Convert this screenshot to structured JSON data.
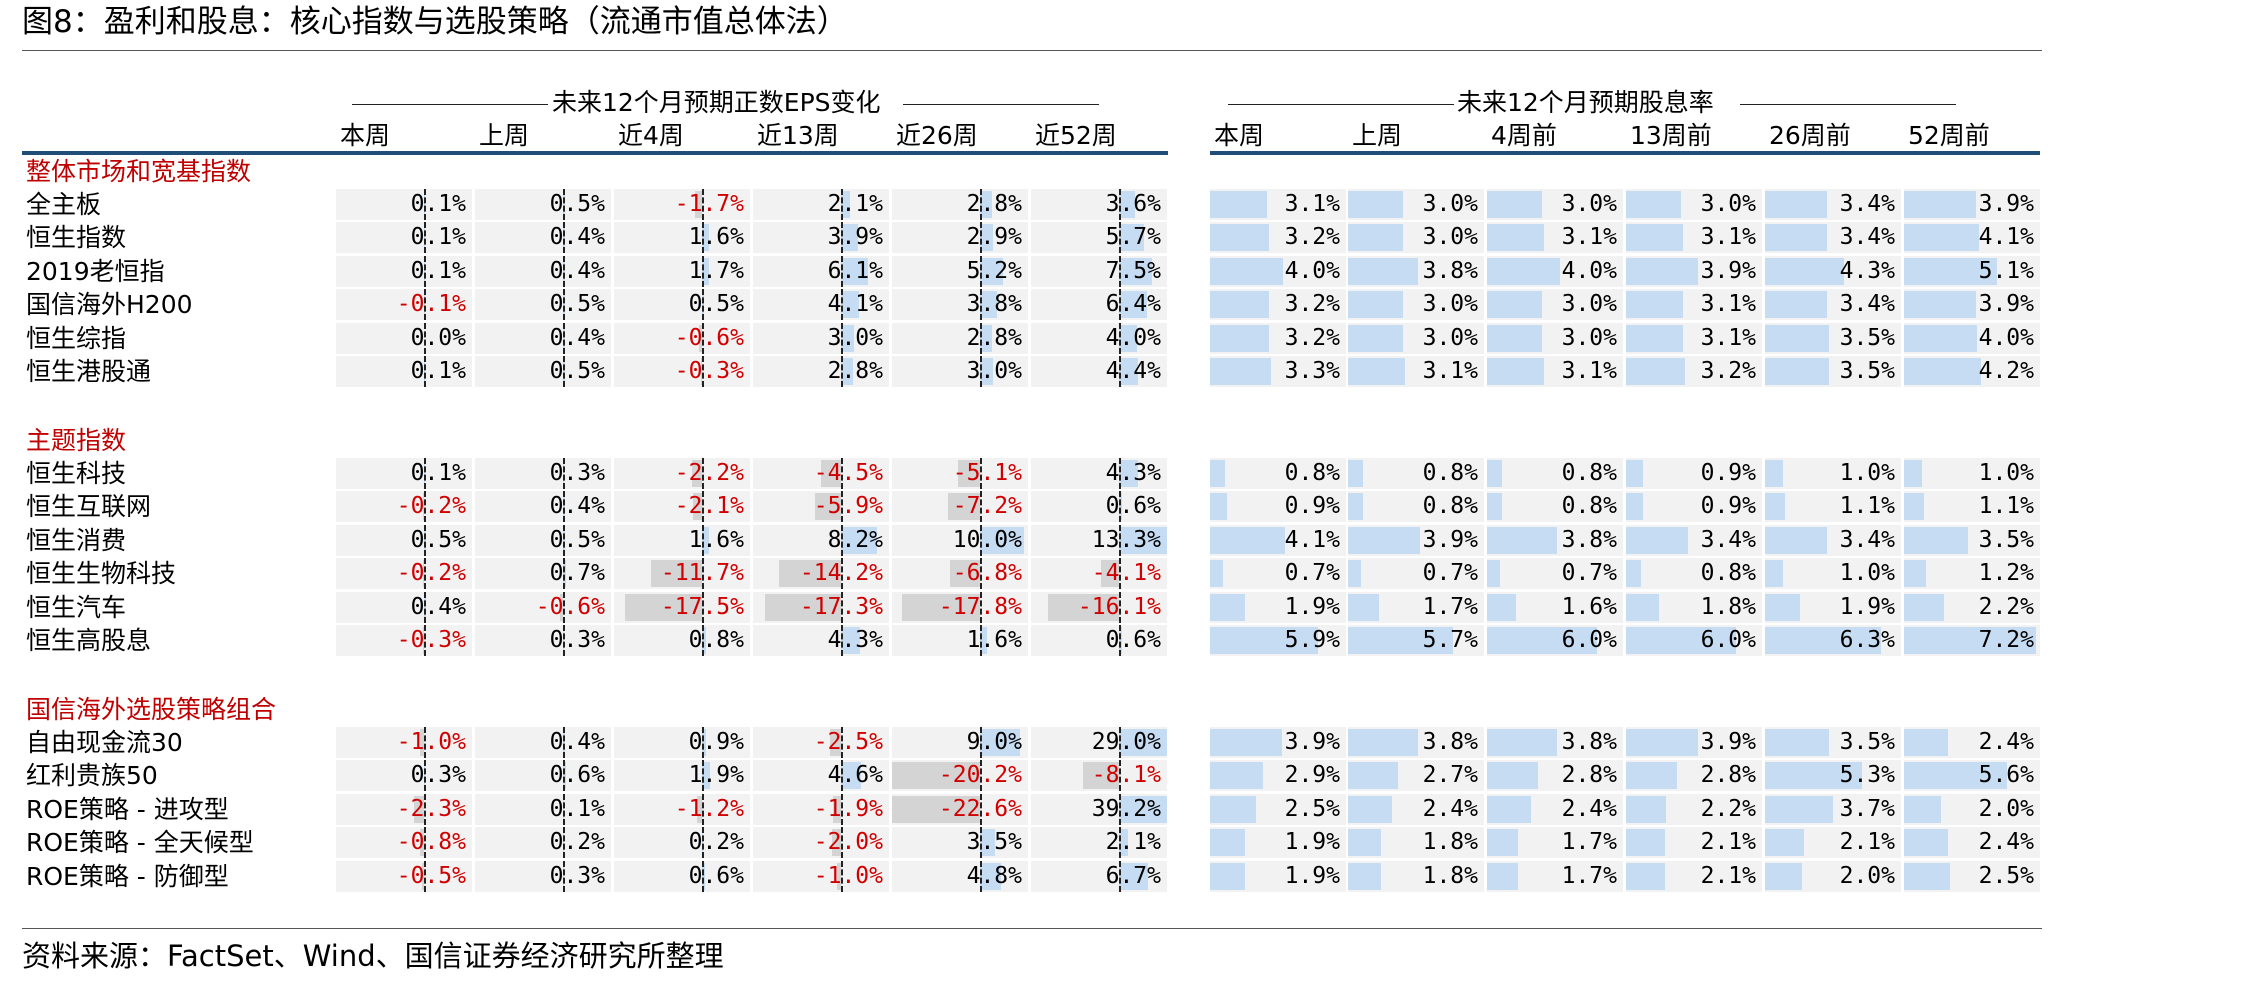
{
  "title": "图8：盈利和股息：核心指数与选股策略（流通市值总体法）",
  "eps_header": "未来12个月预期正数EPS变化",
  "div_header": "未来12个月预期股息率",
  "eps_columns": [
    "本周",
    "上周",
    "近4周",
    "近13周",
    "近26周",
    "近52周"
  ],
  "div_columns": [
    "本周",
    "上周",
    "4周前",
    "13周前",
    "26周前",
    "52周前"
  ],
  "sections": [
    {
      "name": "整体市场和宽基指数",
      "rows": [
        {
          "label": "全主板",
          "eps": [
            0.1,
            0.5,
            -1.7,
            2.1,
            2.8,
            3.6
          ],
          "div": [
            3.1,
            3.0,
            3.0,
            3.0,
            3.4,
            3.9
          ]
        },
        {
          "label": "恒生指数",
          "eps": [
            0.1,
            0.4,
            1.6,
            3.9,
            2.9,
            5.7
          ],
          "div": [
            3.2,
            3.0,
            3.1,
            3.1,
            3.4,
            4.1
          ]
        },
        {
          "label": "2019老恒指",
          "eps": [
            0.1,
            0.4,
            1.7,
            6.1,
            5.2,
            7.5
          ],
          "div": [
            4.0,
            3.8,
            4.0,
            3.9,
            4.3,
            5.1
          ]
        },
        {
          "label": "国信海外H200",
          "eps": [
            -0.1,
            0.5,
            0.5,
            4.1,
            3.8,
            6.4
          ],
          "div": [
            3.2,
            3.0,
            3.0,
            3.1,
            3.4,
            3.9
          ]
        },
        {
          "label": "恒生综指",
          "eps": [
            0.0,
            0.4,
            -0.6,
            3.0,
            2.8,
            4.0
          ],
          "div": [
            3.2,
            3.0,
            3.0,
            3.1,
            3.5,
            4.0
          ]
        },
        {
          "label": "恒生港股通",
          "eps": [
            0.1,
            0.5,
            -0.3,
            2.8,
            3.0,
            4.4
          ],
          "div": [
            3.3,
            3.1,
            3.1,
            3.2,
            3.5,
            4.2
          ]
        }
      ]
    },
    {
      "name": "主题指数",
      "rows": [
        {
          "label": "恒生科技",
          "eps": [
            0.1,
            0.3,
            -2.2,
            -4.5,
            -5.1,
            4.3
          ],
          "div": [
            0.8,
            0.8,
            0.8,
            0.9,
            1.0,
            1.0
          ]
        },
        {
          "label": "恒生互联网",
          "eps": [
            -0.2,
            0.4,
            -2.1,
            -5.9,
            -7.2,
            0.6
          ],
          "div": [
            0.9,
            0.8,
            0.8,
            0.9,
            1.1,
            1.1
          ]
        },
        {
          "label": "恒生消费",
          "eps": [
            0.5,
            0.5,
            1.6,
            8.2,
            10.0,
            13.3
          ],
          "div": [
            4.1,
            3.9,
            3.8,
            3.4,
            3.4,
            3.5
          ]
        },
        {
          "label": "恒生生物科技",
          "eps": [
            -0.2,
            0.7,
            -11.7,
            -14.2,
            -6.8,
            -4.1
          ],
          "div": [
            0.7,
            0.7,
            0.7,
            0.8,
            1.0,
            1.2
          ]
        },
        {
          "label": "恒生汽车",
          "eps": [
            0.4,
            -0.6,
            -17.5,
            -17.3,
            -17.8,
            -16.1
          ],
          "div": [
            1.9,
            1.7,
            1.6,
            1.8,
            1.9,
            2.2
          ]
        },
        {
          "label": "恒生高股息",
          "eps": [
            -0.3,
            0.3,
            0.8,
            4.3,
            1.6,
            0.6
          ],
          "div": [
            5.9,
            5.7,
            6.0,
            6.0,
            6.3,
            7.2
          ]
        }
      ]
    },
    {
      "name": "国信海外选股策略组合",
      "rows": [
        {
          "label": "自由现金流30",
          "eps": [
            -1.0,
            0.4,
            0.9,
            -2.5,
            9.0,
            29.0
          ],
          "div": [
            3.9,
            3.8,
            3.8,
            3.9,
            3.5,
            2.4
          ]
        },
        {
          "label": "红利贵族50",
          "eps": [
            0.3,
            0.6,
            1.9,
            4.6,
            -20.2,
            -8.1
          ],
          "div": [
            2.9,
            2.7,
            2.8,
            2.8,
            5.3,
            5.6
          ]
        },
        {
          "label": "ROE策略 - 进攻型",
          "eps": [
            -2.3,
            0.1,
            -1.2,
            -1.9,
            -22.6,
            39.2
          ],
          "div": [
            2.5,
            2.4,
            2.4,
            2.2,
            3.7,
            2.0
          ]
        },
        {
          "label": "ROE策略 - 全天候型",
          "eps": [
            -0.8,
            0.2,
            0.2,
            -2.0,
            3.5,
            2.1
          ],
          "div": [
            1.9,
            1.8,
            1.7,
            2.1,
            2.1,
            2.4
          ]
        },
        {
          "label": "ROE策略 - 防御型",
          "eps": [
            -0.5,
            0.3,
            0.6,
            -1.0,
            4.8,
            6.7
          ],
          "div": [
            1.9,
            1.8,
            1.7,
            2.1,
            2.0,
            2.5
          ]
        }
      ]
    }
  ],
  "source": "资料来源：FactSet、Wind、国信证券经济研究所整理"
}
